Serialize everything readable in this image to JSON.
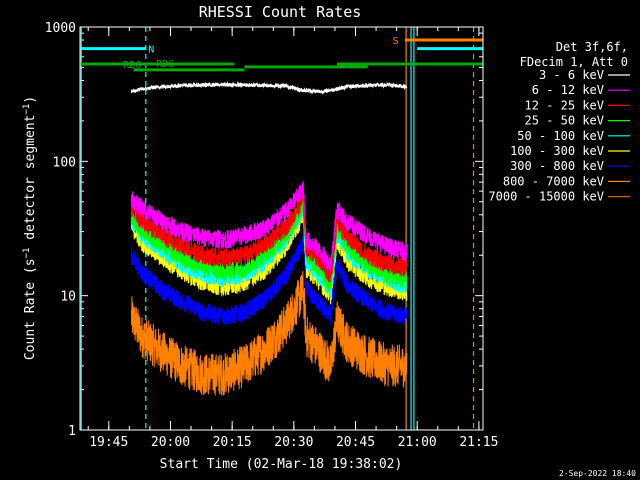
{
  "chart_data": {
    "type": "line",
    "title": "RHESSI Count Rates",
    "xlabel": "Start Time (02-Mar-18 19:38:02)",
    "ylabel_parts": [
      "Count Rate (s",
      "−1",
      " detector segment",
      "−1",
      ")"
    ],
    "yscale": "log",
    "ylim": [
      1,
      1000
    ],
    "xlim_minutes": [
      0,
      98
    ],
    "x_start": "19:38:02",
    "y_ticks": [
      {
        "value": 1,
        "label": "1"
      },
      {
        "value": 10,
        "label": "10"
      },
      {
        "value": 100,
        "label": "100"
      },
      {
        "value": 1000,
        "label": "1000"
      }
    ],
    "x_ticks": [
      {
        "minute": 7,
        "label": "19:45"
      },
      {
        "minute": 22,
        "label": "20:00"
      },
      {
        "minute": 37,
        "label": "20:15"
      },
      {
        "minute": 52,
        "label": "20:30"
      },
      {
        "minute": 67,
        "label": "20:45"
      },
      {
        "minute": 82,
        "label": "21:00"
      },
      {
        "minute": 97,
        "label": "21:15"
      }
    ],
    "legend_header": [
      "Det 3f,6f,",
      "FDecim 1, Att 0"
    ],
    "legend_position": "right",
    "series": [
      {
        "name": "3 - 6 keV",
        "color": "#ffffff",
        "x": [
          12.5,
          15,
          20,
          25,
          30,
          35,
          40,
          45,
          50,
          53.7,
          58.7,
          62.5,
          65,
          70,
          75,
          79.5
        ],
        "values": [
          330,
          345,
          360,
          368,
          370,
          372,
          370,
          368,
          365,
          340,
          330,
          345,
          360,
          368,
          370,
          360
        ]
      },
      {
        "name": "6 - 12 keV",
        "color": "#ff00ff",
        "x": [
          12.5,
          15,
          20,
          25,
          30,
          35,
          40,
          45,
          50,
          54.3,
          55,
          58,
          61,
          62.5,
          65,
          70,
          75,
          79.5
        ],
        "values": [
          52,
          45,
          36,
          30,
          27,
          26,
          28,
          32,
          42,
          62,
          26,
          22,
          17,
          45,
          35,
          28,
          23,
          21
        ]
      },
      {
        "name": "12 - 25 keV",
        "color": "#ff0000",
        "x": [
          12.5,
          15,
          20,
          25,
          30,
          35,
          40,
          45,
          50,
          54.3,
          55,
          58,
          61,
          62.5,
          65,
          70,
          75,
          79.5
        ],
        "values": [
          45,
          36,
          28,
          23,
          20,
          19,
          20,
          24,
          32,
          52,
          23,
          19,
          14,
          36,
          27,
          20,
          17,
          16
        ]
      },
      {
        "name": "25 - 50 keV",
        "color": "#00ff00",
        "x": [
          12.5,
          15,
          20,
          25,
          30,
          35,
          40,
          45,
          50,
          54.3,
          55,
          58,
          61,
          62.5,
          65,
          70,
          75,
          79.5
        ],
        "values": [
          40,
          31,
          24,
          19,
          16,
          15,
          16,
          20,
          28,
          47,
          20,
          16,
          12,
          32,
          23,
          17,
          14,
          13
        ]
      },
      {
        "name": "50 - 100 keV",
        "color": "#00ffff",
        "x": [
          12.5,
          15,
          20,
          25,
          30,
          35,
          40,
          45,
          50,
          54.3,
          55,
          58,
          61,
          62.5,
          65,
          70,
          75,
          79.5
        ],
        "values": [
          37,
          28,
          22,
          17,
          14.5,
          13.5,
          14.5,
          18,
          26,
          44,
          18,
          14.5,
          11,
          29,
          21,
          15.5,
          13,
          12
        ]
      },
      {
        "name": "100 - 300 keV",
        "color": "#ffff00",
        "x": [
          12.5,
          15,
          20,
          25,
          30,
          35,
          40,
          45,
          50,
          54.3,
          55,
          58,
          61,
          62.5,
          65,
          70,
          75,
          79.5
        ],
        "values": [
          33,
          25,
          19,
          15,
          12.5,
          11.5,
          12.5,
          15.5,
          23,
          40,
          16,
          13,
          10,
          26,
          18,
          13.5,
          11.5,
          10.5
        ]
      },
      {
        "name": "300 - 800 keV",
        "color": "#0000ff",
        "x": [
          12.5,
          15,
          20,
          25,
          30,
          35,
          40,
          45,
          50,
          54.3,
          55,
          58,
          61,
          62.5,
          65,
          70,
          75,
          79.5
        ],
        "values": [
          20,
          15,
          11,
          9,
          7.5,
          7,
          7.5,
          9.5,
          14,
          24,
          11,
          9,
          7,
          17,
          12,
          9,
          7.5,
          7
        ]
      },
      {
        "name": "800 - 7000 keV",
        "color": "#ff8000",
        "x": [
          12.5,
          15,
          20,
          25,
          30,
          35,
          40,
          45,
          50,
          54.3,
          55,
          58,
          61,
          62.5,
          65,
          70,
          75,
          79.5
        ],
        "values": [
          7,
          5,
          3.8,
          3,
          2.6,
          2.6,
          3,
          4,
          6,
          11,
          5,
          4,
          3,
          6.5,
          4.5,
          3.5,
          3,
          3
        ]
      },
      {
        "name": "7000 - 15000 keV",
        "color": "#c86400",
        "x": [],
        "values": []
      }
    ],
    "attenuator_bars": [
      {
        "label": "RD0",
        "color": "#00aa00",
        "segments": [
          [
            0,
            37.5
          ],
          [
            62.5,
            98
          ]
        ],
        "y": 530
      },
      {
        "label": "RD6",
        "color": "#00aa00",
        "segments": [
          [
            13,
            40
          ]
        ],
        "y": 480
      },
      {
        "label": "RD6b",
        "color": "#00aa00",
        "segments": [
          [
            40,
            70
          ]
        ],
        "y": 505
      }
    ],
    "saa_bars": [
      {
        "color": "#00ffff",
        "segments": [
          [
            0,
            16
          ],
          [
            82,
            98
          ]
        ],
        "y": 690,
        "label_text": "N",
        "label_minute": 16.6
      },
      {
        "color": "#ff8000",
        "segments": [
          [
            79,
            98
          ]
        ],
        "y": 800,
        "label_text": "S",
        "label_minute": 76
      }
    ],
    "vertical_lines": [
      {
        "minute": 0.3,
        "color": "#00ffff",
        "dashed": false
      },
      {
        "minute": 16,
        "color": "#00ffff",
        "dashed": true
      },
      {
        "minute": 79.3,
        "color": "#ff8000",
        "dashed": false
      },
      {
        "minute": 80.5,
        "color": "#00ffff",
        "dashed": false
      },
      {
        "minute": 81.2,
        "color": "#00ffff",
        "dashed": false
      },
      {
        "minute": 95.7,
        "color": "#ff8000",
        "dashed": true
      }
    ],
    "footer_date": "2-Sep-2022 18:40"
  }
}
